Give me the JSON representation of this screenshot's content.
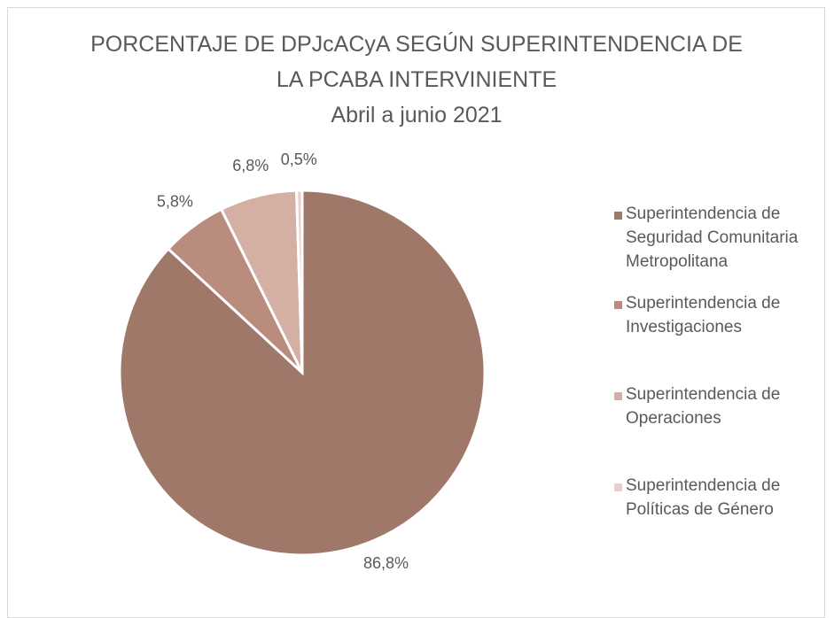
{
  "chart_data": {
    "type": "pie",
    "title": "PORCENTAJE DE DPJcACyA SEGÚN SUPERINTENDENCIA DE LA PCABA INTERVINIENTE",
    "subtitle": "Abril a junio 2021",
    "categories": [
      "Superintendencia de Seguridad Comunitaria Metropolitana",
      "Superintendencia de Investigaciones",
      "Superintendencia de Operaciones",
      "Superintendencia de Políticas de Género"
    ],
    "values": [
      86.8,
      5.8,
      6.8,
      0.5
    ],
    "value_labels": [
      "86,8%",
      "5,8%",
      "6,8%",
      "0,5%"
    ],
    "colors": [
      "#a0786a",
      "#ba8c7e",
      "#d3afa4",
      "#e7d0c9"
    ],
    "legend": "right"
  }
}
